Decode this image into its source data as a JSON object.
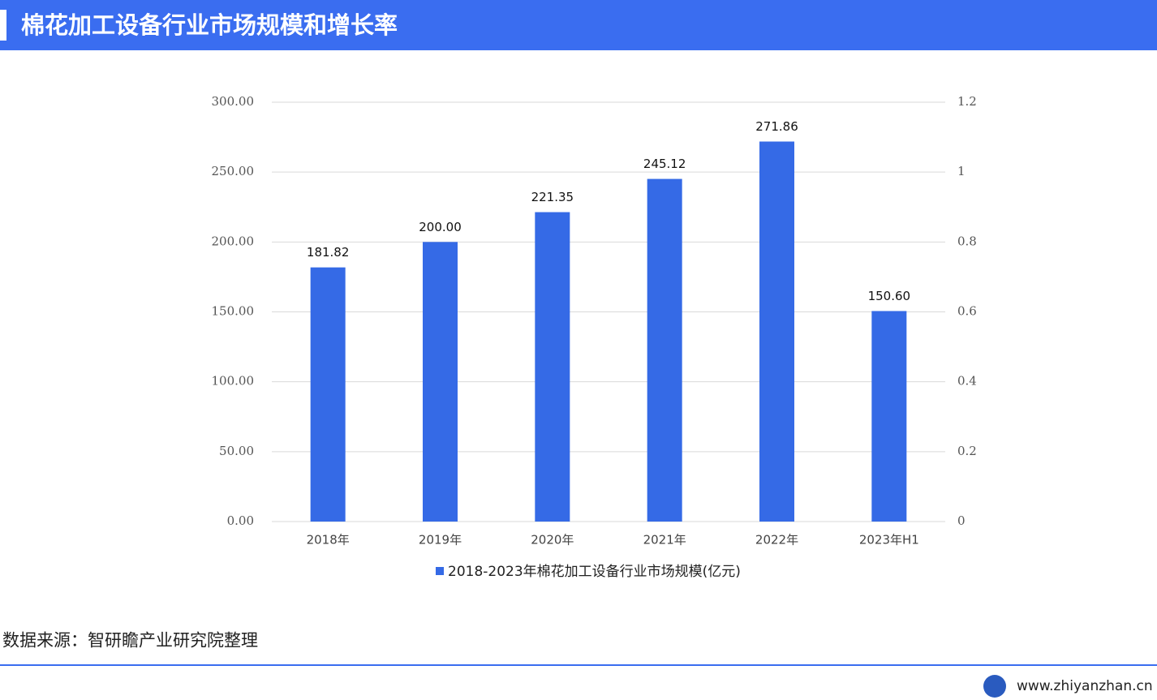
{
  "header": {
    "title": "棉花加工设备行业市场规模和增长率"
  },
  "chart_data": {
    "type": "bar",
    "categories": [
      "2018年",
      "2019年",
      "2020年",
      "2021年",
      "2022年",
      "2023年H1"
    ],
    "series": [
      {
        "name": "2018-2023年棉花加工设备行业市场规模(亿元)",
        "color": "#356ae6",
        "values": [
          181.82,
          200.0,
          221.35,
          245.12,
          271.86,
          150.6
        ],
        "value_labels": [
          "181.82",
          "200.00",
          "221.35",
          "245.12",
          "271.86",
          "150.60"
        ]
      }
    ],
    "ylim": [
      0,
      300
    ],
    "yticks": [
      {
        "value": 0,
        "label": "0.00"
      },
      {
        "value": 50,
        "label": "50.00"
      },
      {
        "value": 100,
        "label": "100.00"
      },
      {
        "value": 150,
        "label": "150.00"
      },
      {
        "value": 200,
        "label": "200.00"
      },
      {
        "value": 250,
        "label": "250.00"
      },
      {
        "value": 300,
        "label": "300.00"
      }
    ],
    "y2lim": [
      0,
      1.2
    ],
    "y2ticks": [
      0,
      0.2,
      0.4,
      0.6,
      0.8,
      1,
      1.2
    ],
    "grid": true,
    "legend": "bottom"
  },
  "source": "数据来源：智研瞻产业研究院整理",
  "footer": {
    "url": "www.zhiyanzhan.cn"
  }
}
